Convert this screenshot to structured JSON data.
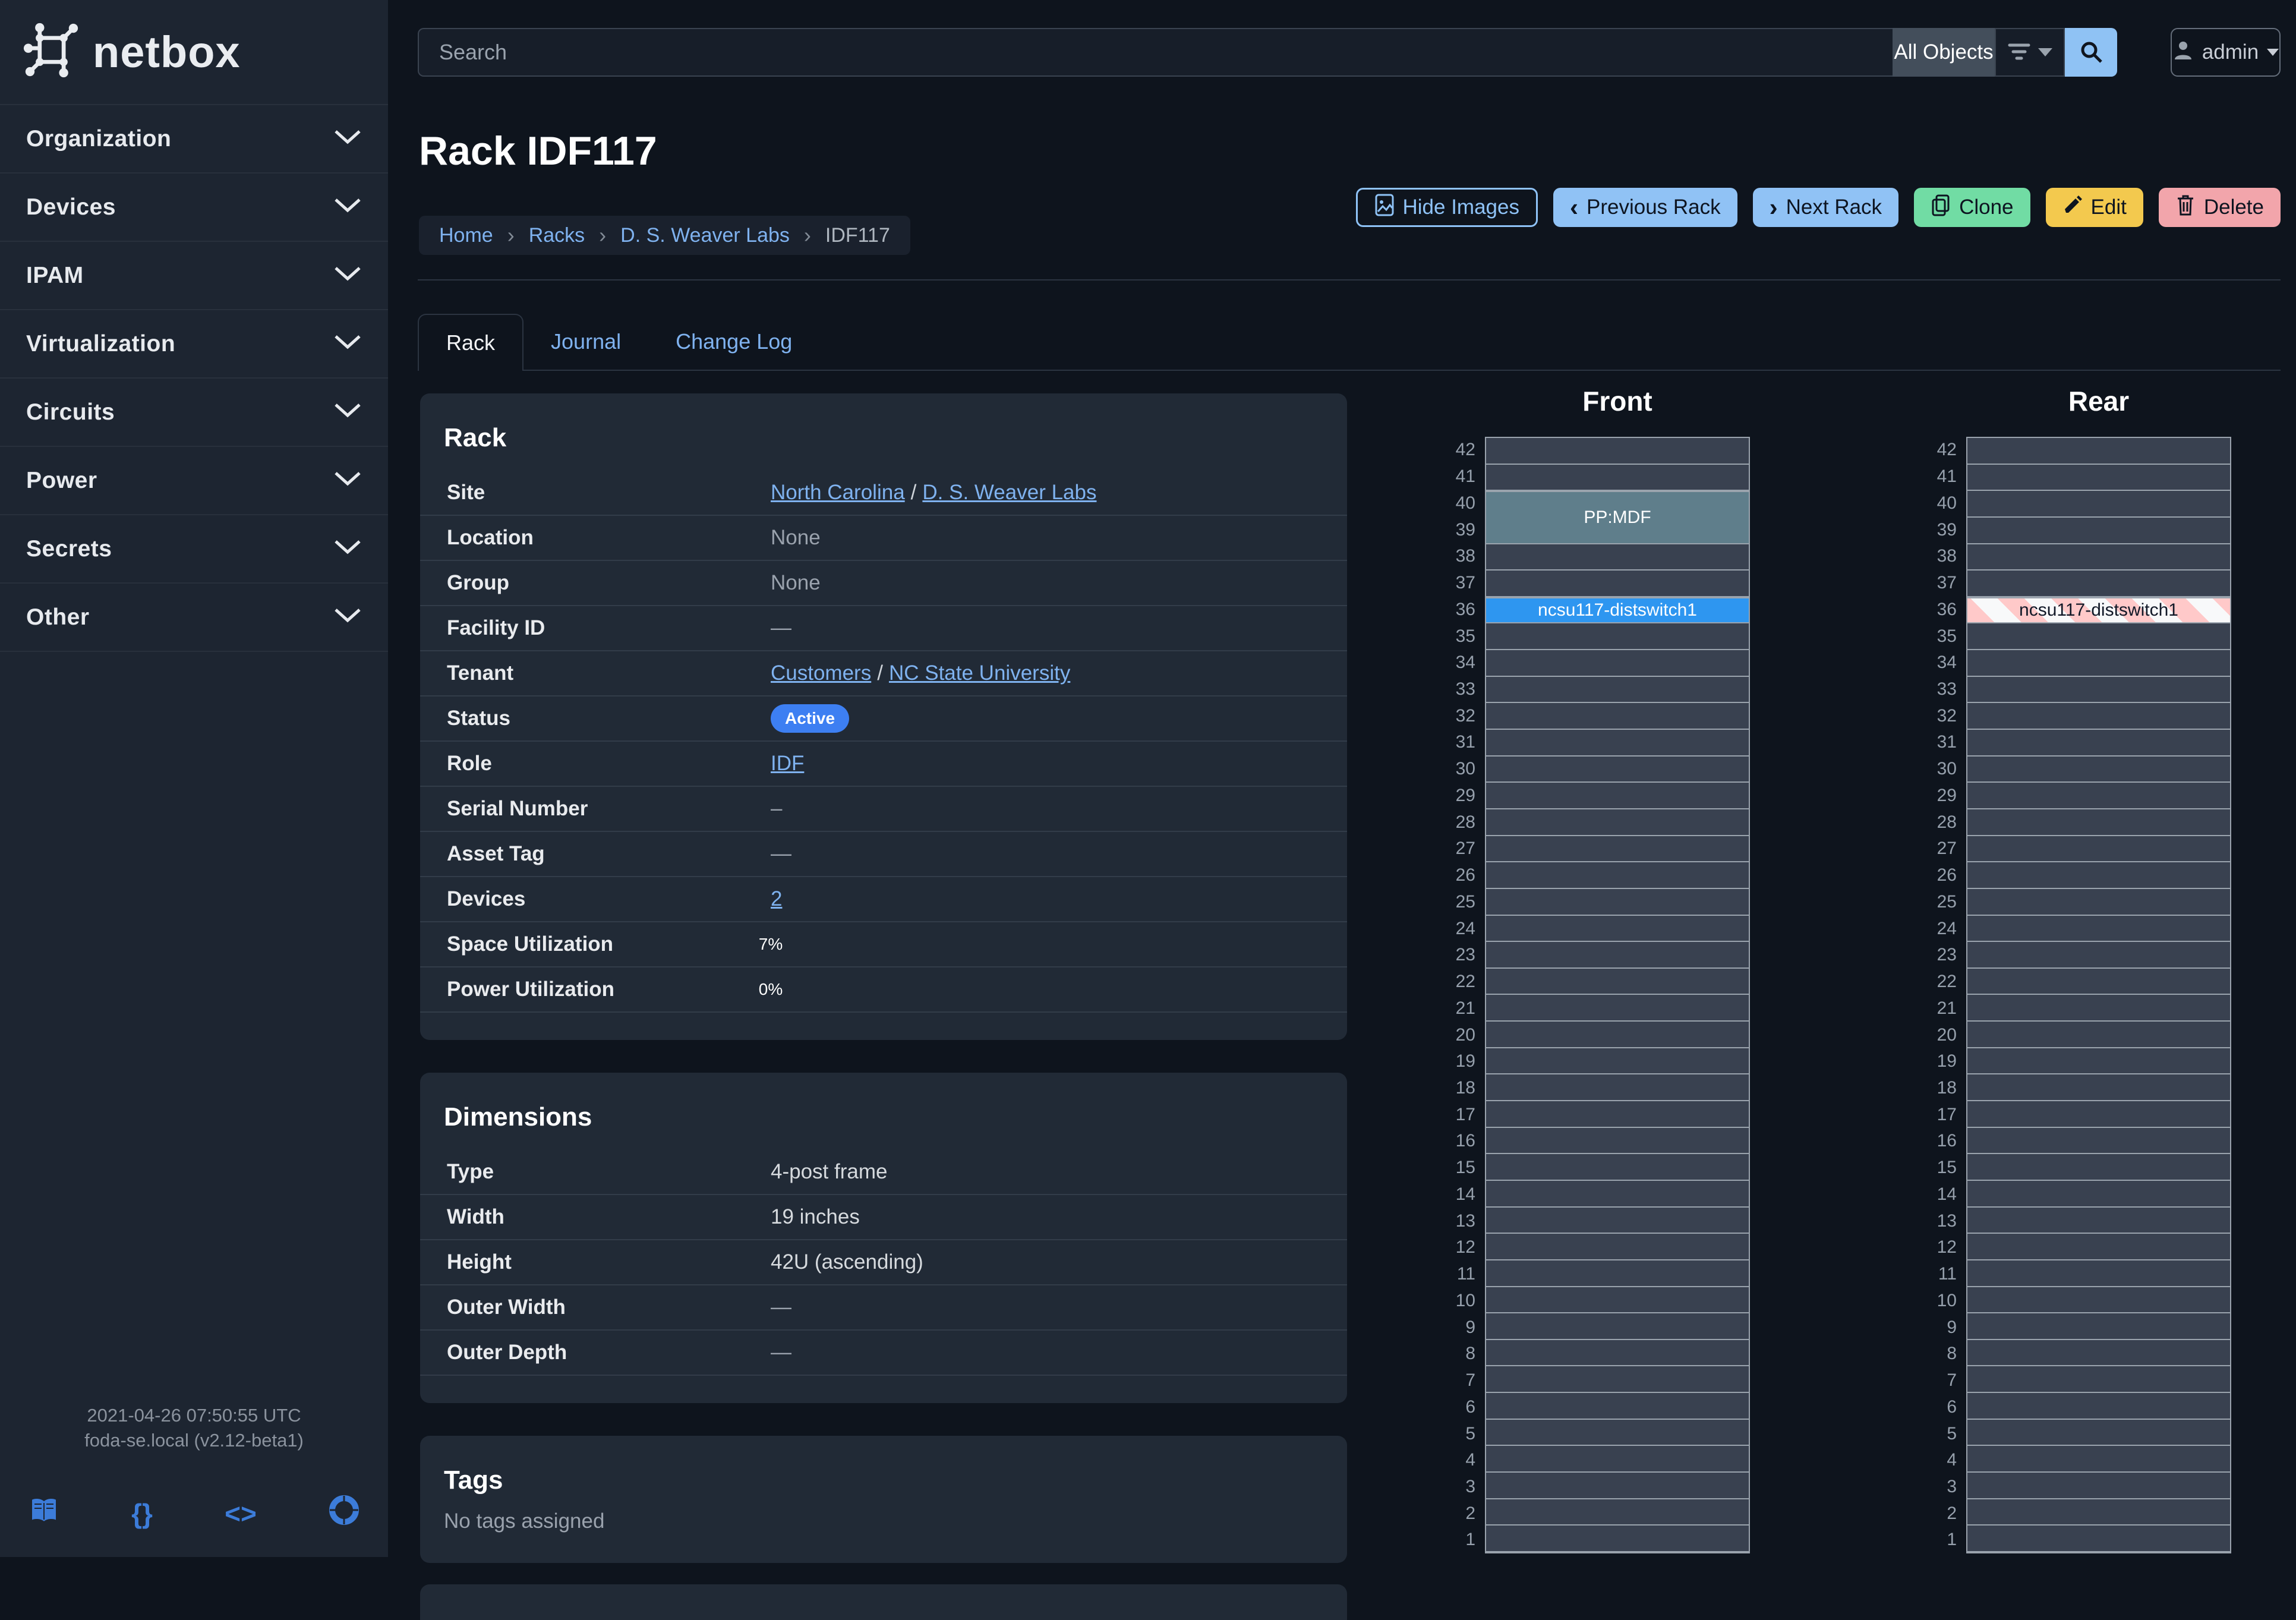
{
  "sidebar": {
    "brand": "netbox",
    "items": [
      {
        "label": "Organization"
      },
      {
        "label": "Devices"
      },
      {
        "label": "IPAM"
      },
      {
        "label": "Virtualization"
      },
      {
        "label": "Circuits"
      },
      {
        "label": "Power"
      },
      {
        "label": "Secrets"
      },
      {
        "label": "Other"
      }
    ],
    "footer": {
      "timestamp": "2021-04-26 07:50:55 UTC",
      "instance": "foda-se.local (v2.12-beta1)",
      "braces_glyph": "{}",
      "code_glyph": "<>"
    }
  },
  "topbar": {
    "search_placeholder": "Search",
    "scope_button": "All Objects",
    "user_button": "admin"
  },
  "page": {
    "title": "Rack IDF117",
    "breadcrumb": {
      "items": [
        "Home",
        "Racks",
        "D. S. Weaver Labs"
      ],
      "current": "IDF117",
      "separator": "›"
    },
    "actions": {
      "hide_images": "Hide Images",
      "previous": "Previous Rack",
      "next": "Next Rack",
      "clone": "Clone",
      "edit": "Edit",
      "delete": "Delete",
      "prev_chevron": "‹",
      "next_chevron": "›"
    },
    "tabs": [
      {
        "label": "Rack"
      },
      {
        "label": "Journal"
      },
      {
        "label": "Change Log"
      }
    ]
  },
  "rack_panel": {
    "title": "Rack",
    "site": {
      "label": "Site",
      "link1": "North Carolina",
      "sep": "/",
      "link2": "D. S. Weaver Labs"
    },
    "location": {
      "label": "Location",
      "value": "None"
    },
    "group": {
      "label": "Group",
      "value": "None"
    },
    "facility_id": {
      "label": "Facility ID",
      "value": "—"
    },
    "tenant": {
      "label": "Tenant",
      "link1": "Customers",
      "sep": "/",
      "link2": "NC State University"
    },
    "status": {
      "label": "Status",
      "badge": "Active"
    },
    "role": {
      "label": "Role",
      "link": "IDF"
    },
    "serial_number": {
      "label": "Serial Number",
      "value": "–"
    },
    "asset_tag": {
      "label": "Asset Tag",
      "value": "—"
    },
    "devices": {
      "label": "Devices",
      "link": "2"
    },
    "space_utilization": {
      "label": "Space Utilization",
      "pct": 7,
      "text": "7%"
    },
    "power_utilization": {
      "label": "Power Utilization",
      "pct": 0,
      "text": "0%"
    }
  },
  "dimensions_panel": {
    "title": "Dimensions",
    "type": {
      "label": "Type",
      "value": "4-post frame"
    },
    "width": {
      "label": "Width",
      "value": "19 inches"
    },
    "height": {
      "label": "Height",
      "value": "42U (ascending)"
    },
    "outer_width": {
      "label": "Outer Width",
      "value": "—"
    },
    "outer_depth": {
      "label": "Outer Depth",
      "value": "—"
    }
  },
  "tags_panel": {
    "title": "Tags",
    "empty": "No tags assigned"
  },
  "elevations": {
    "unit_count": 42,
    "front": {
      "title": "Front",
      "devices": [
        {
          "name": "PP:MDF",
          "top_unit": 40,
          "u_height": 2,
          "style": "teal"
        },
        {
          "name": "ncsu117-distswitch1",
          "top_unit": 36,
          "u_height": 1,
          "style": "blue"
        }
      ]
    },
    "rear": {
      "title": "Rear",
      "devices": [
        {
          "name": "ncsu117-distswitch1",
          "top_unit": 36,
          "u_height": 1,
          "style": "striped"
        }
      ]
    }
  },
  "colors": {
    "accent_device_blue": "#2e96f0",
    "device_teal": "#5f7e8b",
    "stripe_pink": "#ffc9c9",
    "utilization_green": "#2abd8e",
    "status_badge_blue": "#3d7ff2",
    "link_blue": "#7fb2ef",
    "button_blue": "#90c2f5",
    "button_green": "#71dca4",
    "button_yellow": "#f3c94e",
    "button_red": "#f2a5ab"
  }
}
